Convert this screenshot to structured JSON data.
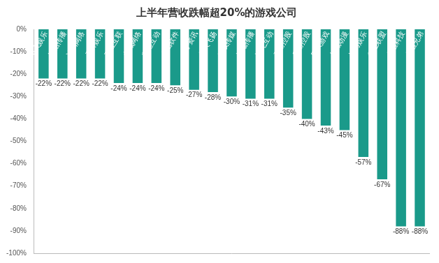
{
  "chart_data": {
    "type": "bar",
    "title": "上半年营收跌幅超20%的游戏公司",
    "categories": [
      "奥飞娱乐",
      "恒信传播",
      "冰川网络",
      "天神娱乐",
      "三五互联",
      "九城网络",
      "蓝港互动",
      "金山软件",
      "大宇资讯",
      "华人飞扬",
      "光线传媒",
      "博瑞传播",
      "游龙互动",
      "云游控股",
      "乐游控股",
      "巨人游戏",
      "长城动漫",
      "神秀娱乐",
      "掌上联盟",
      "华谊科技",
      "华谊兄弟"
    ],
    "values": [
      -22,
      -22,
      -22,
      -22,
      -24,
      -24,
      -24,
      -25,
      -27,
      -28,
      -30,
      -31,
      -31,
      -35,
      -40,
      -43,
      -45,
      -57,
      -67,
      -88,
      -88
    ],
    "value_labels": [
      "-22%",
      "-22%",
      "-22%",
      "-22%",
      "-24%",
      "-24%",
      "-24%",
      "-25%",
      "-27%",
      "-28%",
      "-30%",
      "-31%",
      "-31%",
      "-35%",
      "-40%",
      "-43%",
      "-45%",
      "-57%",
      "-67%",
      "-88%",
      "-88%"
    ],
    "color": "#1a9a8a",
    "ylim": [
      -100,
      0
    ],
    "yticks": [
      {
        "value": -100,
        "label": "-100%"
      },
      {
        "value": -90,
        "label": "-90%"
      },
      {
        "value": -80,
        "label": "-80%"
      },
      {
        "value": -70,
        "label": "-70%"
      },
      {
        "value": -60,
        "label": "-60%"
      },
      {
        "value": -50,
        "label": "-50%"
      },
      {
        "value": -40,
        "label": "-40%"
      },
      {
        "value": -30,
        "label": "-30%"
      },
      {
        "value": -20,
        "label": "-20%"
      },
      {
        "value": -10,
        "label": "-10%"
      },
      {
        "value": 0,
        "label": "0%"
      }
    ],
    "grid": false,
    "data_labels": true
  }
}
